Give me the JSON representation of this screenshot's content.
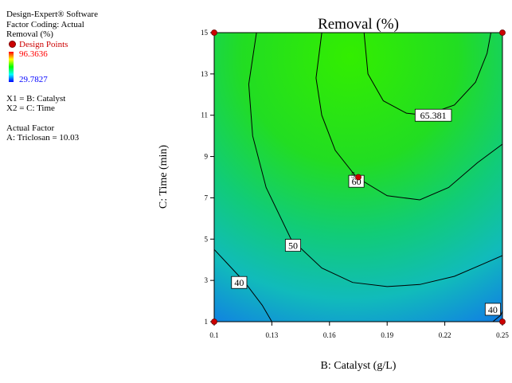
{
  "info": {
    "software": "Design-Expert® Software",
    "coding": "Factor Coding: Actual",
    "response": "Removal (%)",
    "design_points": "Design Points",
    "color_max": "96.3636",
    "color_min": "29.7827",
    "x1": "X1 = B: Catalyst",
    "x2": "X2 = C: Time",
    "actual_factor_header": "Actual Factor",
    "actual_factor_value": "A: Triclosan = 10.03"
  },
  "colors": {
    "green_peak": "#33ee00",
    "blue_corner": "#0a2fd8",
    "design_point": "#cc0000"
  },
  "chart_data": {
    "type": "contour",
    "title": "Removal (%)",
    "xlabel": "B: Catalyst (g/L)",
    "ylabel": "C: Time (min)",
    "xlim": [
      0.1,
      0.25
    ],
    "ylim": [
      1,
      15
    ],
    "x_ticks": [
      "0.1",
      "0.13",
      "0.16",
      "0.19",
      "0.22",
      "0.25"
    ],
    "y_ticks": [
      "1",
      "3",
      "5",
      "7",
      "9",
      "11",
      "13",
      "15"
    ],
    "color_range": [
      29.7827,
      96.3636
    ],
    "contours": [
      {
        "level": "40",
        "label": "40",
        "points": [
          [
            0.1,
            4.5
          ],
          [
            0.107,
            3.8
          ],
          [
            0.116,
            2.9
          ],
          [
            0.125,
            1.8
          ],
          [
            0.13,
            1.0
          ]
        ]
      },
      {
        "level": "40",
        "label": "40",
        "points": [
          [
            0.245,
            1.0
          ],
          [
            0.249,
            1.3
          ],
          [
            0.25,
            1.5
          ]
        ]
      },
      {
        "level": "50",
        "label": "50",
        "points": [
          [
            0.122,
            15.0
          ],
          [
            0.118,
            12.5
          ],
          [
            0.12,
            10.0
          ],
          [
            0.127,
            7.5
          ],
          [
            0.14,
            5.0
          ],
          [
            0.156,
            3.6
          ],
          [
            0.172,
            2.9
          ],
          [
            0.19,
            2.7
          ],
          [
            0.207,
            2.8
          ],
          [
            0.225,
            3.2
          ],
          [
            0.24,
            3.8
          ],
          [
            0.25,
            4.2
          ]
        ]
      },
      {
        "level": "60",
        "label": "60",
        "points": [
          [
            0.156,
            15.0
          ],
          [
            0.153,
            12.8
          ],
          [
            0.156,
            11.0
          ],
          [
            0.163,
            9.3
          ],
          [
            0.174,
            8.0
          ],
          [
            0.19,
            7.1
          ],
          [
            0.207,
            6.9
          ],
          [
            0.222,
            7.5
          ],
          [
            0.237,
            8.7
          ],
          [
            0.25,
            9.6
          ]
        ]
      },
      {
        "level": "65.381",
        "label": "65.381",
        "points": [
          [
            0.178,
            15.0
          ],
          [
            0.18,
            13.0
          ],
          [
            0.188,
            11.7
          ],
          [
            0.2,
            11.1
          ],
          [
            0.21,
            11.0
          ],
          [
            0.225,
            11.5
          ],
          [
            0.236,
            12.6
          ],
          [
            0.242,
            14.0
          ],
          [
            0.244,
            15.0
          ]
        ]
      }
    ],
    "contour_labels": [
      {
        "text": "40",
        "x": 0.113,
        "y": 2.9
      },
      {
        "text": "50",
        "x": 0.141,
        "y": 4.7
      },
      {
        "text": "60",
        "x": 0.174,
        "y": 7.8
      },
      {
        "text": "65.381",
        "x": 0.214,
        "y": 11.0
      },
      {
        "text": "40",
        "x": 0.245,
        "y": 1.6
      }
    ],
    "center_marker": "5",
    "design_points": [
      {
        "x": 0.1,
        "y": 1
      },
      {
        "x": 0.25,
        "y": 1
      },
      {
        "x": 0.1,
        "y": 15
      },
      {
        "x": 0.25,
        "y": 15
      },
      {
        "x": 0.175,
        "y": 8
      }
    ]
  }
}
